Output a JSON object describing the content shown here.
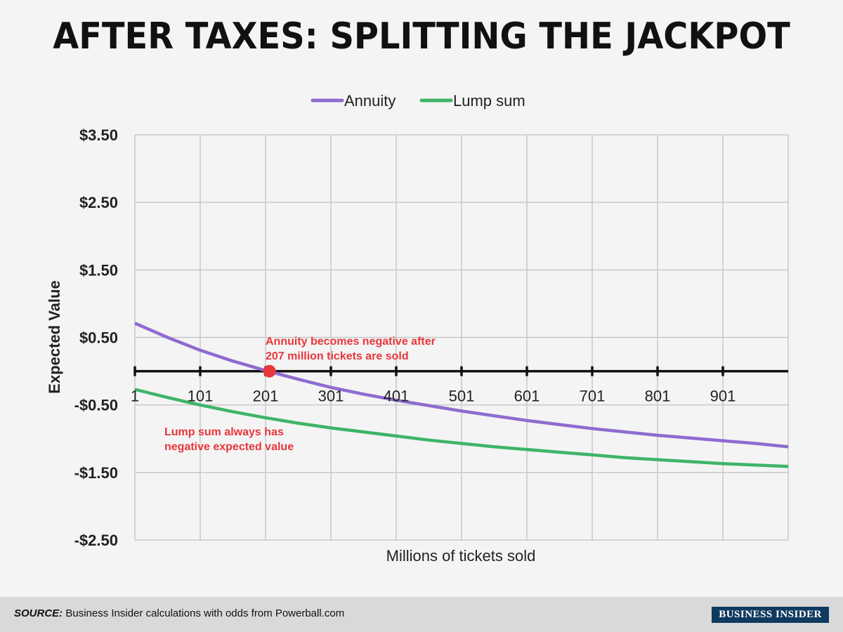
{
  "title": "AFTER TAXES: SPLITTING THE JACKPOT",
  "footer": {
    "source_label": "SOURCE:",
    "source_text": "Business Insider calculations with odds from Powerball.com",
    "brand": "BUSINESS INSIDER"
  },
  "chart_data": {
    "type": "line",
    "xlabel": "Millions of tickets sold",
    "ylabel": "Expected Value",
    "xlim": [
      1,
      1001
    ],
    "ylim": [
      -2.5,
      3.5
    ],
    "x_tick_values": [
      1,
      101,
      201,
      301,
      401,
      501,
      601,
      701,
      801,
      901
    ],
    "x_tick_labels": [
      "1",
      "101",
      "201",
      "301",
      "401",
      "501",
      "601",
      "701",
      "801",
      "901"
    ],
    "y_tick_values": [
      3.5,
      2.5,
      1.5,
      0.5,
      -0.5,
      -1.5,
      -2.5
    ],
    "y_tick_labels": [
      "$3.50",
      "$2.50",
      "$1.50",
      "$0.50",
      "-$0.50",
      "-$1.50",
      "-$2.50"
    ],
    "grid": true,
    "legend_position": "top",
    "series": [
      {
        "name": "Annuity",
        "color": "#8e6bd0",
        "x": [
          1,
          51,
          101,
          151,
          201,
          251,
          301,
          351,
          401,
          451,
          501,
          551,
          601,
          651,
          701,
          751,
          801,
          851,
          901,
          951,
          1001
        ],
        "y": [
          0.71,
          0.5,
          0.31,
          0.15,
          0.01,
          -0.12,
          -0.24,
          -0.34,
          -0.43,
          -0.51,
          -0.59,
          -0.66,
          -0.73,
          -0.79,
          -0.85,
          -0.9,
          -0.95,
          -0.99,
          -1.03,
          -1.07,
          -1.12
        ]
      },
      {
        "name": "Lump sum",
        "color": "#3fb468",
        "x": [
          1,
          51,
          101,
          151,
          201,
          251,
          301,
          351,
          401,
          451,
          501,
          551,
          601,
          651,
          701,
          751,
          801,
          851,
          901,
          951,
          1001
        ],
        "y": [
          -0.27,
          -0.39,
          -0.5,
          -0.6,
          -0.69,
          -0.77,
          -0.84,
          -0.9,
          -0.96,
          -1.02,
          -1.07,
          -1.12,
          -1.16,
          -1.2,
          -1.24,
          -1.28,
          -1.31,
          -1.34,
          -1.37,
          -1.39,
          -1.41
        ]
      }
    ],
    "annotations": [
      {
        "text_lines": [
          "Annuity becomes negative after",
          "207 million tickets are sold"
        ],
        "point": {
          "x": 207,
          "y": 0
        },
        "color": "#e8363a"
      },
      {
        "text_lines": [
          "Lump sum always has",
          "negative expected value"
        ],
        "color": "#e8363a"
      }
    ]
  }
}
